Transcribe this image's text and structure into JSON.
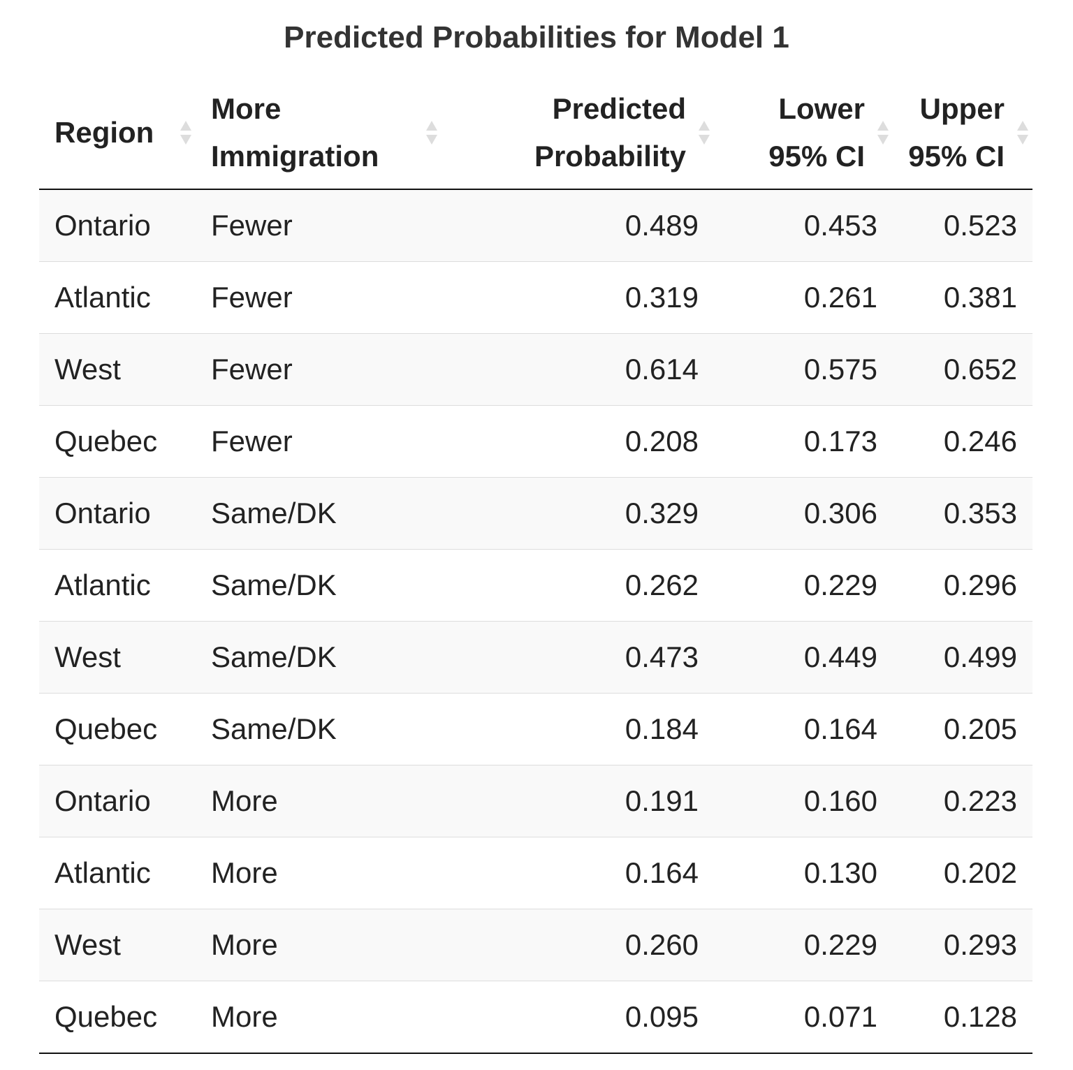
{
  "table": {
    "caption": "Predicted Probabilities for Model 1",
    "columns": [
      {
        "lines": [
          "Region"
        ],
        "align": "left"
      },
      {
        "lines": [
          "More",
          "Immigration"
        ],
        "align": "left"
      },
      {
        "lines": [
          "Predicted",
          "Probability"
        ],
        "align": "right"
      },
      {
        "lines": [
          "Lower",
          "95% CI"
        ],
        "align": "right"
      },
      {
        "lines": [
          "Upper",
          "95% CI"
        ],
        "align": "right"
      }
    ],
    "rows": [
      [
        "Ontario",
        "Fewer",
        "0.489",
        "0.453",
        "0.523"
      ],
      [
        "Atlantic",
        "Fewer",
        "0.319",
        "0.261",
        "0.381"
      ],
      [
        "West",
        "Fewer",
        "0.614",
        "0.575",
        "0.652"
      ],
      [
        "Quebec",
        "Fewer",
        "0.208",
        "0.173",
        "0.246"
      ],
      [
        "Ontario",
        "Same/DK",
        "0.329",
        "0.306",
        "0.353"
      ],
      [
        "Atlantic",
        "Same/DK",
        "0.262",
        "0.229",
        "0.296"
      ],
      [
        "West",
        "Same/DK",
        "0.473",
        "0.449",
        "0.499"
      ],
      [
        "Quebec",
        "Same/DK",
        "0.184",
        "0.164",
        "0.205"
      ],
      [
        "Ontario",
        "More",
        "0.191",
        "0.160",
        "0.223"
      ],
      [
        "Atlantic",
        "More",
        "0.164",
        "0.130",
        "0.202"
      ],
      [
        "West",
        "More",
        "0.260",
        "0.229",
        "0.293"
      ],
      [
        "Quebec",
        "More",
        "0.095",
        "0.071",
        "0.128"
      ]
    ]
  },
  "icons": {
    "sort": "sort-both-icon"
  },
  "colors": {
    "header_rule": "#111111",
    "row_stripe": "#f9f9f9",
    "row_divider": "#dddddd",
    "sort_icon": "#dddddd"
  }
}
